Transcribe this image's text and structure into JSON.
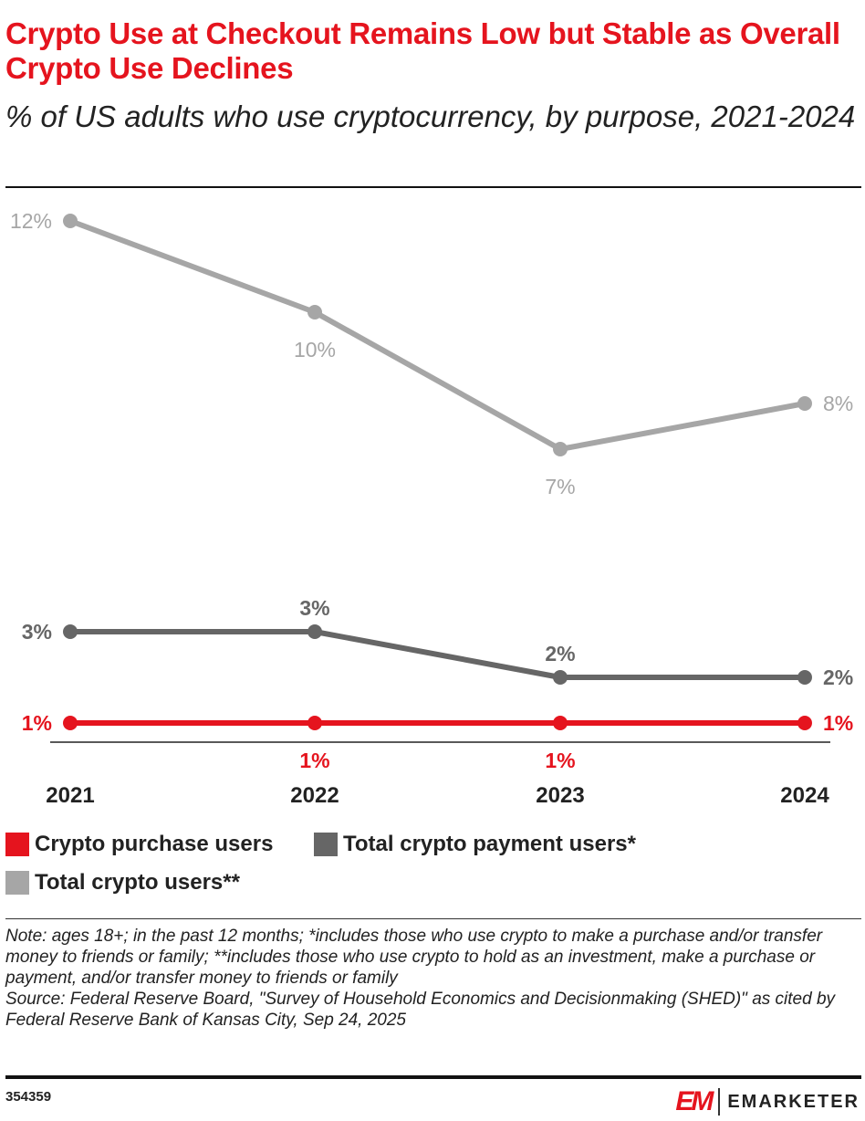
{
  "title": "Crypto Use at Checkout Remains Low but Stable as Overall Crypto Use Declines",
  "subtitle": "% of US adults who use cryptocurrency, by purpose, 2021-2024",
  "chart_data": {
    "type": "line",
    "categories": [
      "2021",
      "2022",
      "2023",
      "2024"
    ],
    "series": [
      {
        "name": "Crypto purchase users",
        "values": [
          1,
          1,
          1,
          1
        ],
        "labels": [
          "1%",
          "1%",
          "1%",
          "1%"
        ],
        "color": "#e5141e"
      },
      {
        "name": "Total crypto payment users*",
        "values": [
          3,
          3,
          2,
          2
        ],
        "labels": [
          "3%",
          "3%",
          "2%",
          "2%"
        ],
        "color": "#666666"
      },
      {
        "name": "Total crypto users**",
        "values": [
          12,
          10,
          7,
          8
        ],
        "labels": [
          "12%",
          "10%",
          "7%",
          "8%"
        ],
        "color": "#a6a6a6"
      }
    ],
    "ylim": [
      0,
      12
    ],
    "grid": false,
    "legend_position": "bottom"
  },
  "note": "Note: ages 18+; in the past 12 months; *includes those who use crypto to make a purchase and/or transfer money to friends or family; **includes those who use crypto to hold as an investment, make a purchase or payment, and/or transfer money to friends or family",
  "source": "Source: Federal Reserve Board, \"Survey of Household Economics and Decisionmaking (SHED)\" as cited by Federal Reserve Bank of Kansas City, Sep 24, 2025",
  "chart_id": "354359",
  "brand": {
    "mark": "EM",
    "name": "EMARKETER"
  }
}
